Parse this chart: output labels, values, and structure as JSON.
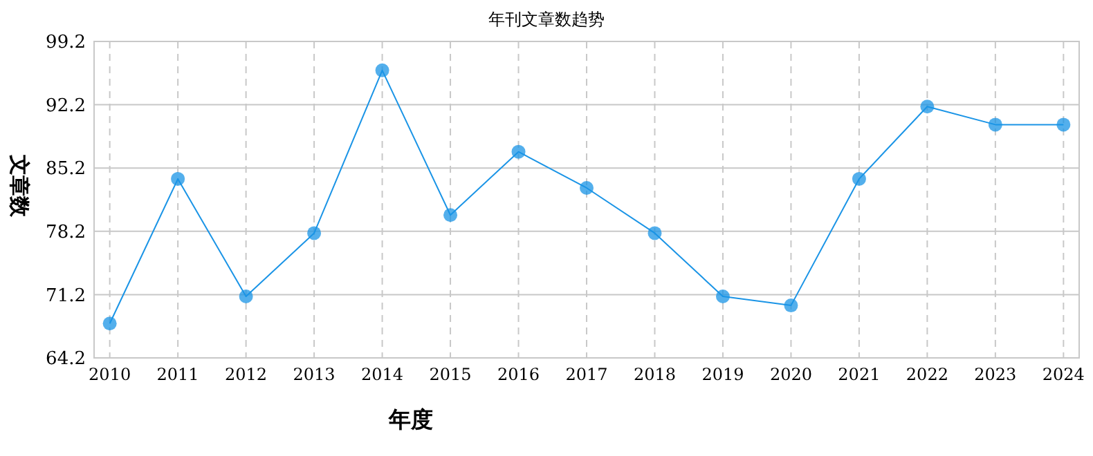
{
  "chart_data": {
    "type": "line",
    "title": "年刊文章数趋势",
    "xlabel": "年度",
    "ylabel": "文章数",
    "categories": [
      "2010",
      "2011",
      "2012",
      "2013",
      "2014",
      "2015",
      "2016",
      "2017",
      "2018",
      "2019",
      "2020",
      "2021",
      "2022",
      "2023",
      "2024"
    ],
    "series": [
      {
        "color": "#1a94e6",
        "values": [
          68,
          84,
          71,
          78,
          96,
          80,
          87,
          83,
          78,
          71,
          70,
          84,
          92,
          90,
          90
        ]
      }
    ],
    "ylim": [
      64.2,
      99.2
    ],
    "yticks": [
      64.2,
      71.2,
      78.2,
      85.2,
      92.2,
      99.2
    ],
    "grid": true,
    "marker": "circle",
    "line_style": "solid"
  }
}
